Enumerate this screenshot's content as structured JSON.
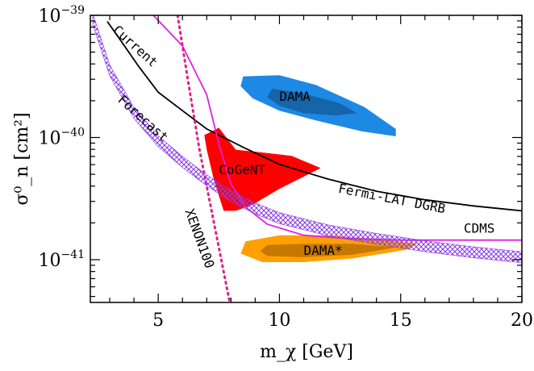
{
  "chart_data": {
    "type": "line",
    "title": "",
    "xlabel": "m_χ [GeV]",
    "ylabel": "σ⁰_n [cm²]",
    "xlim": [
      2.2,
      20
    ],
    "ylim_log10": [
      -41.35,
      -39
    ],
    "yscale": "log",
    "x_ticks": [
      5,
      10,
      15,
      20
    ],
    "y_ticks": [
      {
        "exp": -39,
        "label_base": "10",
        "label_exp": "−39"
      },
      {
        "exp": -40,
        "label_base": "10",
        "label_exp": "−40"
      },
      {
        "exp": -41,
        "label_base": "10",
        "label_exp": "−41"
      }
    ],
    "series": [
      {
        "name": "Fermi-LAT DGRB",
        "style": "solid",
        "color": "#000000",
        "points": [
          [
            2.9,
            -39.05
          ],
          [
            3.5,
            -39.22
          ],
          [
            4.2,
            -39.42
          ],
          [
            5.0,
            -39.63
          ],
          [
            6.0,
            -39.78
          ],
          [
            7.0,
            -39.93
          ],
          [
            8.5,
            -40.08
          ],
          [
            10,
            -40.22
          ],
          [
            12,
            -40.34
          ],
          [
            14,
            -40.44
          ],
          [
            16,
            -40.51
          ],
          [
            18,
            -40.56
          ],
          [
            20,
            -40.6
          ]
        ]
      },
      {
        "name": "CDMS",
        "style": "solid",
        "color": "#e020e0",
        "points": [
          [
            4.8,
            -39.0
          ],
          [
            6.0,
            -39.25
          ],
          [
            7.0,
            -39.65
          ],
          [
            7.5,
            -40.05
          ],
          [
            8.0,
            -40.38
          ],
          [
            8.6,
            -40.57
          ],
          [
            9.5,
            -40.71
          ],
          [
            11,
            -40.8
          ],
          [
            13,
            -40.83
          ],
          [
            15,
            -40.84
          ],
          [
            20,
            -40.84
          ]
        ]
      },
      {
        "name": "XENON100",
        "style": "dotted",
        "color": "#e0208a",
        "points": [
          [
            5.8,
            -39.0
          ],
          [
            6.2,
            -39.5
          ],
          [
            6.7,
            -40.1
          ],
          [
            7.2,
            -40.6
          ],
          [
            7.6,
            -41.0
          ],
          [
            7.95,
            -41.35
          ]
        ]
      },
      {
        "name": "Forecast",
        "style": "band",
        "color": "#8a3ee8",
        "points": [
          [
            2.3,
            -39.03
          ],
          [
            3.0,
            -39.45
          ],
          [
            4.0,
            -39.8
          ],
          [
            5.0,
            -40.03
          ],
          [
            6.0,
            -40.2
          ],
          [
            7.0,
            -40.35
          ],
          [
            8.0,
            -40.48
          ],
          [
            9.0,
            -40.58
          ],
          [
            10,
            -40.66
          ],
          [
            12,
            -40.76
          ],
          [
            14,
            -40.83
          ],
          [
            16,
            -40.89
          ],
          [
            18,
            -40.94
          ],
          [
            20,
            -40.98
          ]
        ]
      }
    ],
    "regions": [
      {
        "name": "DAMA",
        "color": "#1e88e5",
        "inner_color": "#1565a8",
        "outer": [
          [
            8.5,
            -39.5
          ],
          [
            10.0,
            -39.49
          ],
          [
            11.5,
            -39.57
          ],
          [
            13.5,
            -39.75
          ],
          [
            14.8,
            -39.93
          ],
          [
            14.8,
            -39.99
          ],
          [
            13.4,
            -39.95
          ],
          [
            11.5,
            -39.86
          ],
          [
            10,
            -39.78
          ],
          [
            8.9,
            -39.68
          ],
          [
            8.4,
            -39.58
          ]
        ],
        "inner": [
          [
            9.7,
            -39.6
          ],
          [
            11,
            -39.64
          ],
          [
            12.5,
            -39.72
          ],
          [
            13.2,
            -39.8
          ],
          [
            12.3,
            -39.82
          ],
          [
            11,
            -39.8
          ],
          [
            10,
            -39.74
          ],
          [
            9.5,
            -39.67
          ]
        ]
      },
      {
        "name": "CoGeNT",
        "color": "#ff0000",
        "inner_color": "#ff0000",
        "outer": [
          [
            6.9,
            -39.98
          ],
          [
            7.5,
            -39.92
          ],
          [
            8.2,
            -40.1
          ],
          [
            9.2,
            -40.12
          ],
          [
            10.5,
            -40.15
          ],
          [
            11.7,
            -40.25
          ],
          [
            10.0,
            -40.42
          ],
          [
            8.9,
            -40.55
          ],
          [
            8.2,
            -40.6
          ],
          [
            7.7,
            -40.6
          ],
          [
            7.3,
            -40.35
          ],
          [
            7.0,
            -40.1
          ]
        ],
        "inner": []
      },
      {
        "name": "DAMA*",
        "color": "#ffa000",
        "inner_color": "#c77800",
        "outer": [
          [
            8.6,
            -40.85
          ],
          [
            10,
            -40.8
          ],
          [
            12,
            -40.8
          ],
          [
            14,
            -40.83
          ],
          [
            15.7,
            -40.87
          ],
          [
            15.2,
            -40.92
          ],
          [
            13,
            -40.99
          ],
          [
            11,
            -41.02
          ],
          [
            9.3,
            -41.02
          ],
          [
            8.4,
            -40.95
          ]
        ],
        "inner": [
          [
            9.5,
            -40.88
          ],
          [
            11,
            -40.87
          ],
          [
            13,
            -40.87
          ],
          [
            14.8,
            -40.9
          ],
          [
            13,
            -40.96
          ],
          [
            11,
            -40.98
          ],
          [
            9.5,
            -40.97
          ],
          [
            9.2,
            -40.93
          ]
        ]
      }
    ],
    "annotations": [
      {
        "text": "Current",
        "x": 3.1,
        "y": -39.13,
        "rotate": 42
      },
      {
        "text": "Forecast",
        "x": 3.3,
        "y": -39.7,
        "rotate": 42
      },
      {
        "text": "DAMA",
        "x": 10.0,
        "y": -39.7,
        "rotate": 0
      },
      {
        "text": "CoGeNT",
        "x": 7.5,
        "y": -40.3,
        "rotate": 0
      },
      {
        "text": "Fermi-LAT DGRB",
        "x": 12.4,
        "y": -40.45,
        "rotate": 11
      },
      {
        "text": "CDMS",
        "x": 17.6,
        "y": -40.78,
        "rotate": 0
      },
      {
        "text": "DAMA*",
        "x": 11.0,
        "y": -40.96,
        "rotate": 0
      },
      {
        "text": "XENON100",
        "x": 6.1,
        "y": -40.6,
        "rotate": 70
      }
    ],
    "grid": false,
    "legend": "none"
  }
}
